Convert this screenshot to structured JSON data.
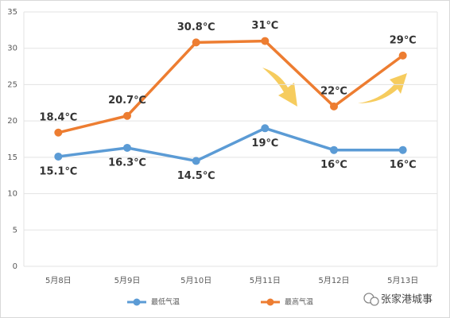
{
  "chart_data": {
    "type": "line",
    "categories": [
      "5月8日",
      "5月9日",
      "5月10日",
      "5月11日",
      "5月12日",
      "5月13日"
    ],
    "series": [
      {
        "name": "最低气温",
        "color": "#5b9bd5",
        "values": [
          15.1,
          16.3,
          14.5,
          19,
          16,
          16
        ],
        "value_labels": [
          "15.1℃",
          "16.3℃",
          "14.5℃",
          "19℃",
          "16℃",
          "16℃"
        ]
      },
      {
        "name": "最高气温",
        "color": "#ed7d31",
        "values": [
          18.4,
          20.7,
          30.8,
          31,
          22,
          29
        ],
        "value_labels": [
          "18.4℃",
          "20.7℃",
          "30.8℃",
          "31℃",
          "22℃",
          "29℃"
        ]
      }
    ],
    "ylim": [
      0,
      35
    ],
    "yticks": [
      0,
      5,
      10,
      15,
      20,
      25,
      30,
      35
    ],
    "grid": true,
    "legend": "bottom"
  },
  "watermark": "张家港城事"
}
